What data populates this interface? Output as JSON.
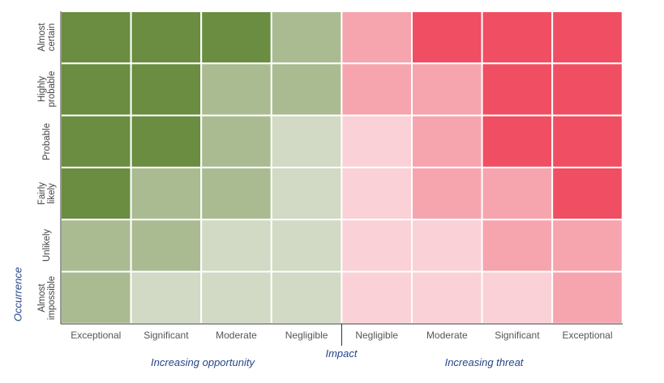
{
  "chart_data": {
    "type": "heatmap",
    "title": "",
    "xlabel": "Impact",
    "ylabel": "Occurrence",
    "x_categories": [
      "Exceptional",
      "Significant",
      "Moderate",
      "Negligible",
      "Negligible",
      "Moderate",
      "Significant",
      "Exceptional"
    ],
    "y_categories": [
      "Almost\ncertain",
      "Highly\nprobable",
      "Probable",
      "Fairly\nlikely",
      "Unlikely",
      "Almost\nimpossible"
    ],
    "group_labels": {
      "opportunity": "Increasing opportunity",
      "threat": "Increasing threat"
    },
    "levels": [
      [
        3,
        3,
        3,
        2,
        -2,
        -3,
        -3,
        -3
      ],
      [
        3,
        3,
        2,
        2,
        -2,
        -2,
        -3,
        -3
      ],
      [
        3,
        3,
        2,
        1,
        -1,
        -2,
        -3,
        -3
      ],
      [
        3,
        2,
        2,
        1,
        -1,
        -2,
        -2,
        -3
      ],
      [
        2,
        2,
        1,
        1,
        -1,
        -1,
        -2,
        -2
      ],
      [
        2,
        1,
        1,
        1,
        -1,
        -1,
        -1,
        -2
      ]
    ],
    "colors": {
      "opportunity_high": "#6a8d41",
      "opportunity_medium": "#aabb92",
      "opportunity_low": "#d2d9c4",
      "threat_low": "#fad1d6",
      "threat_medium": "#f6a4ae",
      "threat_high": "#f04e62",
      "axis_title": "#26458a",
      "grid_line": "#ffffff"
    }
  }
}
